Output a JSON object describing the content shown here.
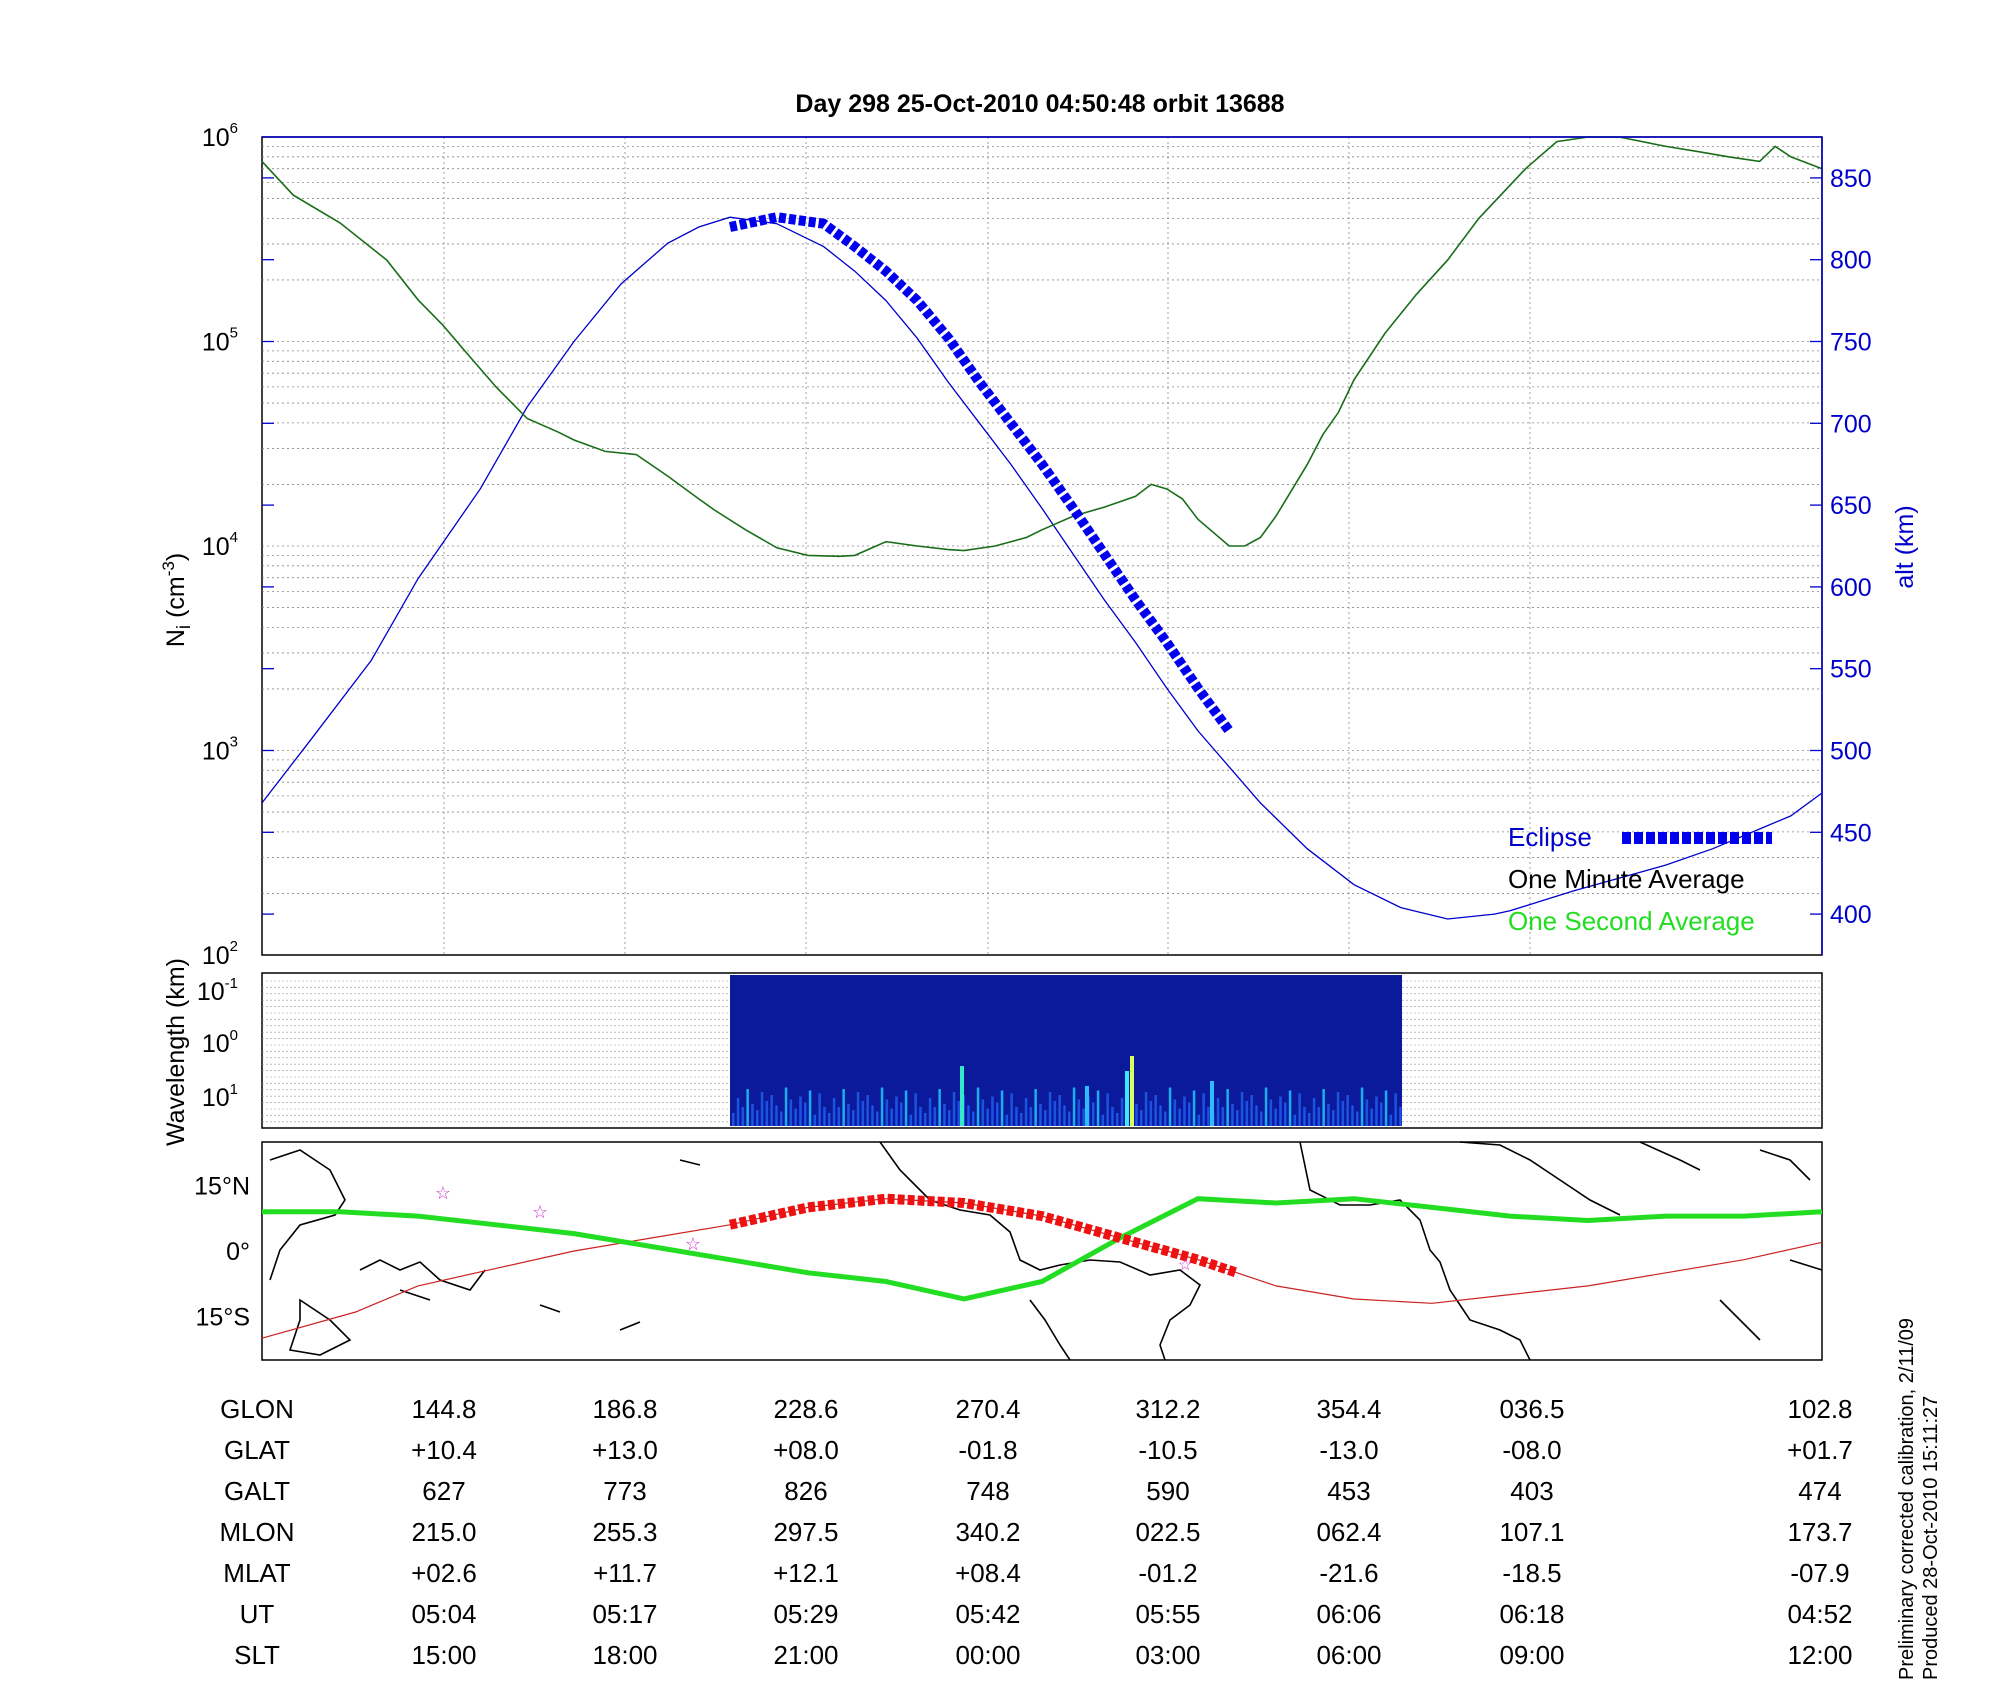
{
  "figure": {
    "title": "Day 298  25-Oct-2010 04:50:48   orbit 13688",
    "colors": {
      "density": "#1a6e1a",
      "altitude": "#0000cc",
      "eclipse": "#0000ee",
      "track": "#22dd22",
      "eclipse_map": "#ee1111",
      "orbit_map": "#cc2222",
      "star": "#cc33cc"
    }
  },
  "chart_data": [
    {
      "type": "line",
      "panel": "density",
      "ylabel_left": "N_i (cm^-3)",
      "ylabel_right": "alt (km)",
      "yscale_left": "log",
      "ylim_left": [
        100,
        1000000
      ],
      "ylim_right": [
        375,
        875
      ],
      "left_ticks": [
        "10^2",
        "10^3",
        "10^4",
        "10^5",
        "10^6"
      ],
      "right_ticks": [
        400,
        450,
        500,
        550,
        600,
        650,
        700,
        750,
        800,
        850
      ],
      "xlim": [
        0,
        1
      ],
      "grid": true,
      "legend_position": "bottom-right",
      "legend": [
        {
          "label": "Eclipse",
          "style": "thick dashed blue"
        },
        {
          "label": "One Minute Average",
          "style": "dark green line"
        },
        {
          "label": "One Second Average",
          "style": "bright green line"
        }
      ],
      "series": [
        {
          "name": "One Minute Average",
          "axis": "left",
          "x": [
            0,
            0.02,
            0.05,
            0.08,
            0.1,
            0.116,
            0.13,
            0.15,
            0.17,
            0.19,
            0.2,
            0.22,
            0.24,
            0.26,
            0.28,
            0.29,
            0.31,
            0.33,
            0.35,
            0.37,
            0.38,
            0.4,
            0.42,
            0.44,
            0.45,
            0.47,
            0.49,
            0.5,
            0.52,
            0.54,
            0.56,
            0.57,
            0.58,
            0.59,
            0.6,
            0.62,
            0.63,
            0.64,
            0.65,
            0.67,
            0.68,
            0.69,
            0.7,
            0.72,
            0.74,
            0.76,
            0.78,
            0.81,
            0.83,
            0.85,
            0.87,
            0.9,
            0.92,
            0.94,
            0.96,
            0.97,
            0.98,
            1.0
          ],
          "values": [
            760000,
            520000,
            380000,
            250000,
            160000,
            120000,
            90000,
            60000,
            42000,
            36000,
            33000,
            29000,
            28000,
            22000,
            17000,
            15000,
            12000,
            9800,
            9000,
            8900,
            9000,
            10500,
            10000,
            9600,
            9500,
            10000,
            11000,
            12000,
            14000,
            15500,
            17500,
            20000,
            19000,
            17000,
            13500,
            10000,
            10000,
            11000,
            14000,
            25000,
            35000,
            45000,
            65000,
            110000,
            170000,
            250000,
            400000,
            700000,
            950000,
            1050000,
            1000000,
            900000,
            850000,
            800000,
            760000,
            900000,
            800000,
            700000
          ]
        },
        {
          "name": "alt",
          "axis": "right",
          "x": [
            0,
            0.03,
            0.07,
            0.1,
            0.14,
            0.17,
            0.2,
            0.23,
            0.26,
            0.28,
            0.3,
            0.33,
            0.36,
            0.38,
            0.4,
            0.42,
            0.44,
            0.46,
            0.48,
            0.5,
            0.52,
            0.54,
            0.56,
            0.58,
            0.6,
            0.62,
            0.64,
            0.67,
            0.7,
            0.73,
            0.76,
            0.79,
            0.8,
            0.82,
            0.84,
            0.87,
            0.9,
            0.93,
            0.96,
            0.98,
            1.0
          ],
          "values": [
            468,
            505,
            555,
            605,
            660,
            710,
            750,
            785,
            810,
            820,
            826,
            822,
            808,
            793,
            775,
            752,
            725,
            700,
            675,
            648,
            620,
            592,
            566,
            538,
            512,
            490,
            468,
            440,
            418,
            404,
            397,
            400,
            402,
            408,
            414,
            422,
            430,
            440,
            452,
            460,
            474
          ]
        },
        {
          "name": "Eclipse",
          "axis": "right",
          "x": [
            0.3,
            0.33,
            0.36,
            0.38,
            0.4,
            0.42,
            0.44,
            0.46,
            0.48,
            0.5,
            0.52,
            0.54,
            0.56,
            0.58,
            0.6,
            0.62
          ],
          "values": [
            820,
            826,
            822,
            808,
            793,
            775,
            752,
            725,
            700,
            675,
            648,
            620,
            592,
            566,
            538,
            512
          ]
        }
      ]
    },
    {
      "type": "heatmap",
      "panel": "spectrogram",
      "ylabel": "Wavelength (km)",
      "y_ticks": [
        "10^-1",
        "10^0",
        "10^1"
      ],
      "x_range": [
        0.3,
        0.73
      ],
      "colormap": "jet"
    },
    {
      "type": "line",
      "panel": "map",
      "y_ticks": [
        "15°N",
        "0°",
        "15°S"
      ],
      "ylim": [
        -25,
        25
      ],
      "series": [
        {
          "name": "satellite track",
          "x": [
            0,
            0.06,
            0.1,
            0.15,
            0.2,
            0.25,
            0.3,
            0.35,
            0.4,
            0.45,
            0.5,
            0.55,
            0.6,
            0.65,
            0.7,
            0.75,
            0.8,
            0.85,
            0.9,
            0.95,
            1.0
          ],
          "values": [
            -20,
            -14,
            -8,
            -4,
            0,
            3,
            6,
            10,
            12,
            11,
            8,
            3,
            -2,
            -8,
            -11,
            -12,
            -10,
            -8,
            -5,
            -2,
            2
          ]
        },
        {
          "name": "footprint",
          "x": [
            0,
            0.05,
            0.1,
            0.15,
            0.2,
            0.25,
            0.3,
            0.35,
            0.4,
            0.45,
            0.5,
            0.55,
            0.6,
            0.65,
            0.7,
            0.75,
            0.8,
            0.85,
            0.9,
            0.95,
            1.0
          ],
          "values": [
            9,
            9,
            8,
            6,
            4,
            1,
            -2,
            -5,
            -7,
            -11,
            -7,
            3,
            12,
            11,
            12,
            10,
            8,
            7,
            8,
            8,
            9
          ]
        },
        {
          "name": "Eclipse",
          "x": [
            0.3,
            0.35,
            0.4,
            0.45,
            0.5,
            0.55,
            0.6,
            0.625
          ],
          "values": [
            6,
            10,
            12,
            11,
            8,
            3,
            -2,
            -5
          ]
        }
      ]
    }
  ],
  "table": {
    "rows": [
      {
        "label": "GLON",
        "values": [
          "144.8",
          "186.8",
          "228.6",
          "270.4",
          "312.2",
          "354.4",
          "036.5",
          "102.8"
        ]
      },
      {
        "label": "GLAT",
        "values": [
          "+10.4",
          "+13.0",
          "+08.0",
          "-01.8",
          "-10.5",
          "-13.0",
          "-08.0",
          "+01.7"
        ]
      },
      {
        "label": "GALT",
        "values": [
          "627",
          "773",
          "826",
          "748",
          "590",
          "453",
          "403",
          "474"
        ]
      },
      {
        "label": "MLON",
        "values": [
          "215.0",
          "255.3",
          "297.5",
          "340.2",
          "022.5",
          "062.4",
          "107.1",
          "173.7"
        ]
      },
      {
        "label": "MLAT",
        "values": [
          "+02.6",
          "+11.7",
          "+12.1",
          "+08.4",
          "-01.2",
          "-21.6",
          "-18.5",
          "-07.9"
        ]
      },
      {
        "label": "UT",
        "values": [
          "05:04",
          "05:17",
          "05:29",
          "05:42",
          "05:55",
          "06:06",
          "06:18",
          "04:52"
        ]
      },
      {
        "label": "SLT",
        "values": [
          "15:00",
          "18:00",
          "21:00",
          "00:00",
          "03:00",
          "06:00",
          "09:00",
          "12:00"
        ]
      }
    ]
  },
  "side_note": {
    "line1": "Preliminary corrected calibration, 2/11/09",
    "line2": "Produced 28-Oct-2010 15:11:27"
  }
}
